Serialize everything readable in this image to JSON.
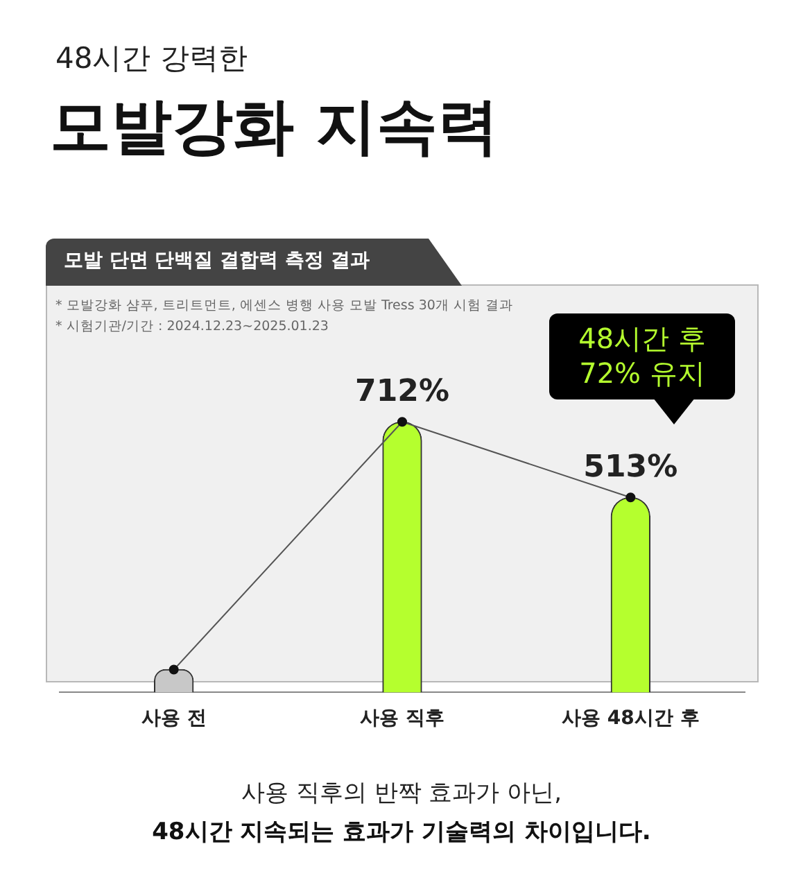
{
  "chart_data": {
    "type": "bar",
    "title": "모발강화 지속력",
    "subtitle": "48시간 강력한",
    "categories": [
      "사용 전",
      "사용 직후",
      "사용 48시간 후"
    ],
    "series": [
      {
        "colors": [
          "#c8c8c8",
          "#b5ff2e",
          "#b5ff2e"
        ],
        "values": [
          60,
          712,
          513
        ],
        "value_labels": [
          null,
          "712%",
          "513%"
        ]
      },
      {
        "type": "line",
        "color": "#555555",
        "values": [
          60,
          712,
          513
        ],
        "marker": "circle"
      }
    ],
    "annotations": [
      "모발 단면 단백질 결합력 측정 결과",
      "* 모발강화 샴푸, 트리트먼트, 에센스 병행 사용 모발 Tress 30개 시험 결과",
      "* 시험기관/기간 : 2024.12.23~2025.01.23",
      "48시간 후\n72% 유지",
      "사용 직후의 반짝 효과가 아닌,",
      "48시간 지속되는 효과가 기술력의 차이입니다."
    ],
    "legend": false
  }
}
